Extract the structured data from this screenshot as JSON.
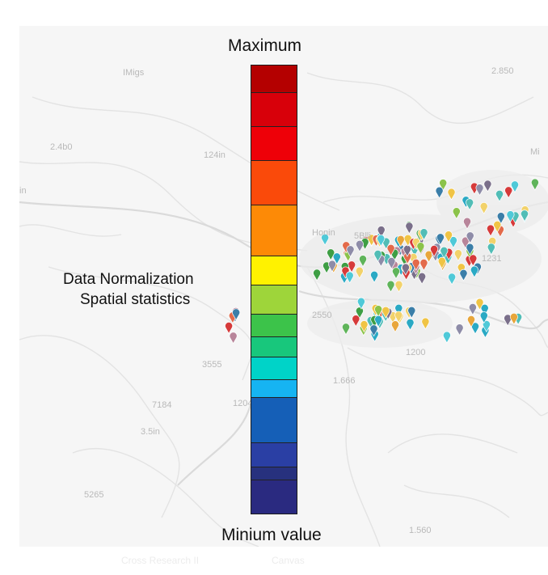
{
  "legend": {
    "max_label": "Maximum",
    "min_label": "Minium value",
    "side_label_1": "Data Normalization",
    "side_label_2": "Spatial statistics",
    "colors": [
      "#b40000",
      "#d8000a",
      "#ee0008",
      "#fa4a0a",
      "#fd8a06",
      "#fff200",
      "#9ed53a",
      "#3cc34a",
      "#18c77c",
      "#00d3c8",
      "#16b4f2",
      "#155fb7",
      "#2a3fa4",
      "#27317e",
      "#2a2a80"
    ]
  },
  "map": {
    "labels": [
      "IMigs",
      "2.850",
      "2.4b0",
      "124in",
      "Mi",
      "in",
      "Honin",
      "5Blli",
      "1231",
      "2550",
      "3555",
      "1.666",
      "1200",
      "7184",
      "3.5in",
      "1204",
      "5265",
      "1.560"
    ]
  },
  "markers": {
    "palette": [
      "#2aa9c4",
      "#3b7ea8",
      "#51bdb6",
      "#8e8ca8",
      "#7a6f8a",
      "#b8859a",
      "#e8a63b",
      "#f0c445",
      "#5fb45a",
      "#3e9e44",
      "#8bc34a",
      "#d63a3a",
      "#e36a4a",
      "#f2d26a",
      "#4fc9d8"
    ]
  },
  "footer": {
    "ghost_1": "Cross Research II",
    "ghost_2": "Canvas"
  }
}
